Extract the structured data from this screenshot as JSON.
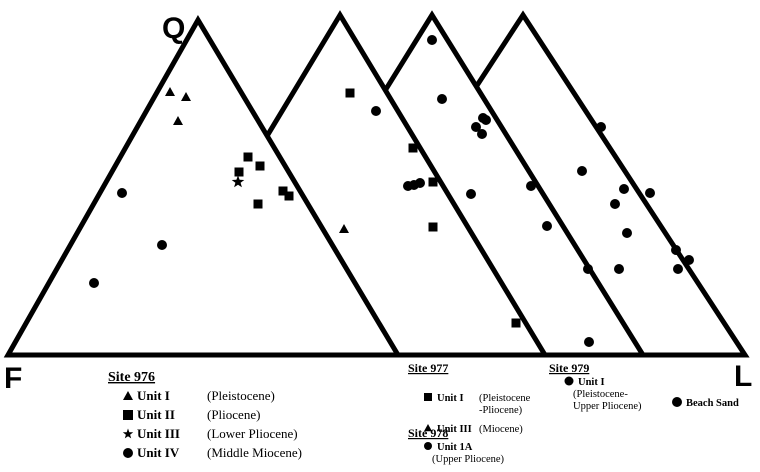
{
  "apex_labels": {
    "top": "Q",
    "left": "F",
    "right": "L"
  },
  "legends": [
    {
      "site": "Site 976",
      "entries": [
        {
          "unit": "Unit I",
          "age": [
            "(Pleistocene)"
          ]
        },
        {
          "unit": "Unit II",
          "age": [
            "(Pliocene)"
          ]
        },
        {
          "unit": "Unit III",
          "age": [
            "(Lower Pliocene)"
          ]
        },
        {
          "unit": "Unit IV",
          "age": [
            "(Middle Miocene)"
          ]
        }
      ]
    },
    {
      "site": "Site 977",
      "entries": [
        {
          "unit": "Unit I",
          "age": [
            "(Pleistocene",
            "-Pliocene)"
          ]
        },
        {
          "unit": "Unit III",
          "age": [
            "(Miocene)"
          ]
        }
      ]
    },
    {
      "site": "Site 978",
      "entries": [
        {
          "unit": "Unit 1A",
          "age": [
            "(Upper Pliocene)"
          ]
        }
      ]
    },
    {
      "site": "Site 979",
      "entries": [
        {
          "unit": "Unit I",
          "age": [
            "(Pleistocene-",
            "Upper Pliocene)"
          ]
        }
      ]
    }
  ],
  "beach_sand": "Beach Sand"
}
